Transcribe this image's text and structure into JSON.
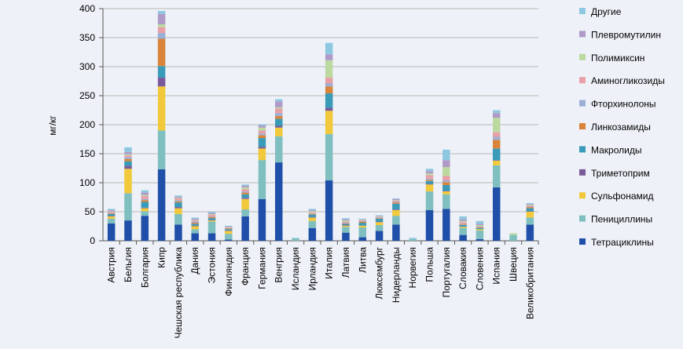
{
  "chart_data": {
    "type": "bar",
    "stacked": true,
    "ylabel": "мг/кг",
    "xlabel": "",
    "ylim": [
      0,
      400
    ],
    "yticks": [
      0,
      50,
      100,
      150,
      200,
      250,
      300,
      350,
      400
    ],
    "grid": true,
    "legend_position": "right",
    "categories": [
      "Австрия",
      "Бельгия",
      "Болгария",
      "Кипр",
      "Чешская республика",
      "Дания",
      "Эстония",
      "Финляндия",
      "Франция",
      "Германия",
      "Венгрия",
      "Исландия",
      "Ирландия",
      "Италия",
      "Латвия",
      "Литва",
      "Люксембург",
      "Нидерланды",
      "Норвегия",
      "Польша",
      "Португалия",
      "Словакия",
      "Словения",
      "Испания",
      "Швеция",
      "Великобритания"
    ],
    "series": [
      {
        "name": "Тетрациклины",
        "color": "#1f4fa8",
        "values": [
          30,
          35,
          43,
          123,
          28,
          13,
          13,
          2,
          42,
          72,
          135,
          0,
          22,
          104,
          14,
          6,
          17,
          28,
          0,
          53,
          55,
          10,
          3,
          92,
          0,
          28
        ]
      },
      {
        "name": "Пенициллины",
        "color": "#7fbfbf",
        "values": [
          8,
          47,
          8,
          67,
          18,
          7,
          20,
          10,
          12,
          67,
          45,
          4,
          12,
          80,
          10,
          17,
          10,
          15,
          3,
          32,
          25,
          12,
          15,
          38,
          10,
          12
        ]
      },
      {
        "name": "Сульфонамид",
        "color": "#f2c93a",
        "values": [
          4,
          42,
          5,
          76,
          10,
          5,
          2,
          5,
          18,
          20,
          15,
          0,
          6,
          40,
          2,
          3,
          5,
          10,
          0,
          12,
          5,
          2,
          2,
          8,
          0,
          10
        ]
      },
      {
        "name": "Триметоприм",
        "color": "#7a5a99",
        "values": [
          1,
          5,
          1,
          15,
          2,
          1,
          1,
          1,
          2,
          3,
          3,
          0,
          1,
          5,
          1,
          0,
          1,
          1,
          0,
          1,
          1,
          0,
          0,
          1,
          0,
          1
        ]
      },
      {
        "name": "Макролиды",
        "color": "#3a9bb8",
        "values": [
          3,
          8,
          10,
          20,
          8,
          3,
          3,
          2,
          6,
          15,
          12,
          0,
          4,
          25,
          2,
          5,
          5,
          10,
          0,
          5,
          10,
          3,
          2,
          20,
          0,
          5
        ]
      },
      {
        "name": "Линкозамиды",
        "color": "#d9843a",
        "values": [
          1,
          4,
          3,
          47,
          2,
          2,
          2,
          1,
          3,
          5,
          5,
          0,
          1,
          12,
          1,
          2,
          1,
          2,
          0,
          2,
          5,
          1,
          1,
          15,
          0,
          2
        ]
      },
      {
        "name": "Фторхинолоны",
        "color": "#9aaed6",
        "values": [
          1,
          3,
          2,
          10,
          2,
          2,
          1,
          1,
          2,
          3,
          5,
          0,
          1,
          5,
          1,
          1,
          1,
          1,
          0,
          2,
          3,
          1,
          1,
          5,
          0,
          1
        ]
      },
      {
        "name": "Аминогликозиды",
        "color": "#e8a0a8",
        "values": [
          2,
          3,
          5,
          10,
          3,
          2,
          3,
          1,
          4,
          5,
          8,
          0,
          2,
          10,
          2,
          1,
          1,
          2,
          0,
          6,
          8,
          3,
          1,
          8,
          0,
          2
        ]
      },
      {
        "name": "Полимиксин",
        "color": "#bcd9a0",
        "values": [
          1,
          2,
          2,
          5,
          1,
          1,
          1,
          1,
          3,
          5,
          2,
          0,
          2,
          30,
          2,
          1,
          1,
          1,
          0,
          3,
          15,
          2,
          2,
          25,
          3,
          1
        ]
      },
      {
        "name": "Плевромутилин",
        "color": "#b09ac8",
        "values": [
          2,
          4,
          4,
          18,
          2,
          2,
          2,
          1,
          3,
          4,
          10,
          0,
          2,
          10,
          2,
          1,
          1,
          2,
          0,
          4,
          12,
          3,
          2,
          8,
          0,
          1
        ]
      },
      {
        "name": "Другие",
        "color": "#8ec8e0",
        "values": [
          2,
          8,
          4,
          5,
          2,
          2,
          2,
          1,
          2,
          2,
          4,
          1,
          2,
          20,
          2,
          1,
          1,
          1,
          2,
          4,
          18,
          5,
          5,
          5,
          0,
          2
        ]
      }
    ]
  }
}
